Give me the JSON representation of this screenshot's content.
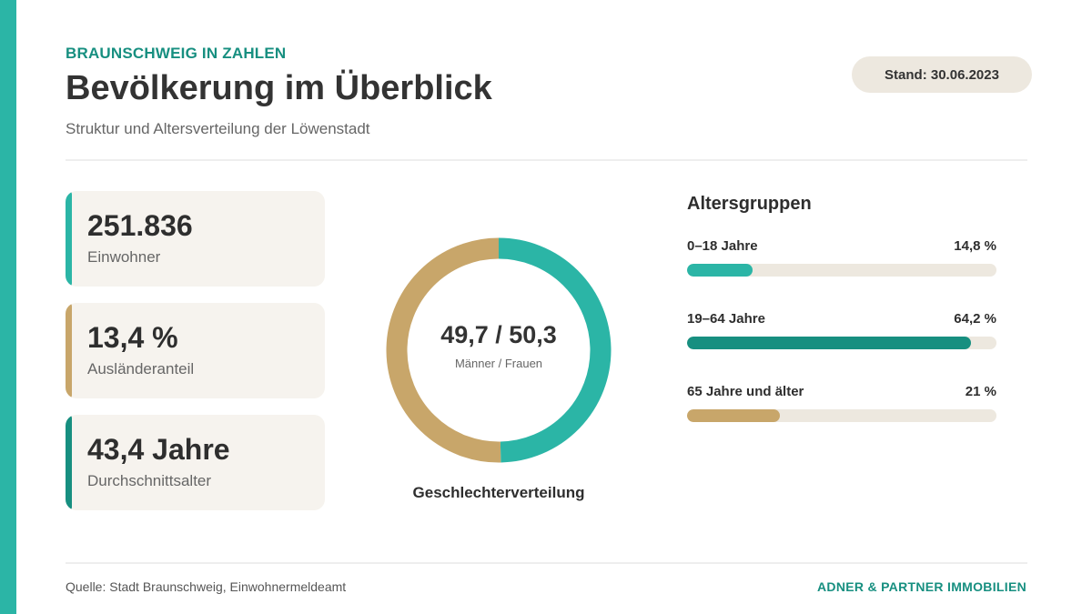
{
  "header": {
    "kicker": "BRAUNSCHWEIG IN ZAHLEN",
    "title": "Bevölkerung im Überblick",
    "subtitle": "Struktur und Altersverteilung der Löwenstadt",
    "stand": "Stand: 30.06.2023"
  },
  "kpis": [
    {
      "value": "251.836",
      "label": "Einwohner",
      "color": "#2bb5a6"
    },
    {
      "value": "13,4 %",
      "label": "Ausländeranteil",
      "color": "#c8a66a"
    },
    {
      "value": "43,4 Jahre",
      "label": "Durchschnittsalter",
      "color": "#178f80"
    }
  ],
  "gender": {
    "value": "49,7 / 50,3",
    "caption": "Männer / Frauen",
    "title": "Geschlechterverteilung"
  },
  "age": {
    "title": "Altersgruppen"
  },
  "chart_data": [
    {
      "type": "pie",
      "title": "Geschlechterverteilung",
      "categories": [
        "Männer",
        "Frauen"
      ],
      "values": [
        49.7,
        50.3
      ],
      "colors": [
        "#2bb5a6",
        "#c8a66a"
      ]
    },
    {
      "type": "bar",
      "title": "Altersgruppen",
      "categories": [
        "0–18 Jahre",
        "19–64 Jahre",
        "65 Jahre und älter"
      ],
      "values": [
        14.8,
        64.2,
        21
      ],
      "value_labels": [
        "14,8 %",
        "64,2 %",
        "21 %"
      ],
      "colors": [
        "#2bb5a6",
        "#178f80",
        "#c8a66a"
      ],
      "ylim": [
        0,
        70
      ]
    }
  ],
  "footer": {
    "source": "Quelle: Stadt Braunschweig, Einwohnermeldeamt",
    "brand": "ADNER & PARTNER IMMOBILIEN"
  },
  "colors": {
    "accent": "#2bb5a6",
    "accent_dark": "#178f80",
    "gold": "#c8a66a",
    "track": "#ede8df",
    "card": "#f6f3ee"
  }
}
